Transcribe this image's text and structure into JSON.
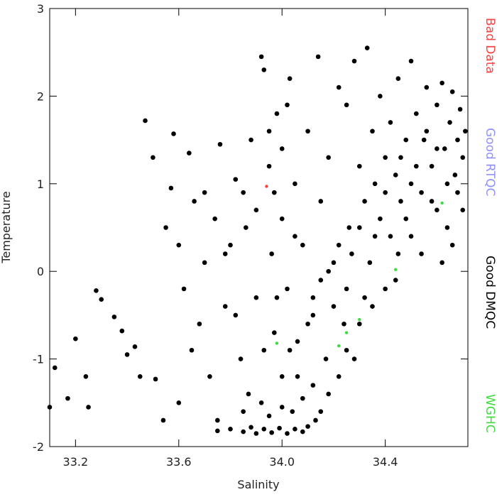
{
  "chart_data": {
    "type": "scatter",
    "x_label": "Salinity",
    "y_label": "Temperature",
    "xlim": [
      33.1,
      34.72
    ],
    "xticks": [
      {
        "value": 33.2,
        "label": "33.2"
      },
      {
        "value": 33.6,
        "label": "33.6"
      },
      {
        "value": 34.0,
        "label": "34.0"
      },
      {
        "value": 34.4,
        "label": "34.4"
      }
    ],
    "ylim": [
      -2,
      3
    ],
    "yticks": [
      -2,
      -1,
      0,
      1,
      2,
      3
    ],
    "series": [
      {
        "name": "Bad Data",
        "color": "#ff4040",
        "x": [
          33.94
        ],
        "values": [
          0.97
        ]
      },
      {
        "name": "Good RTQC",
        "color": "#8f8fff",
        "x": [],
        "values": []
      },
      {
        "name": "Good DMQC",
        "color": "#000000",
        "x": [
          33.1,
          33.12,
          33.17,
          33.2,
          33.24,
          33.25,
          33.28,
          33.3,
          33.35,
          33.38,
          33.4,
          33.43,
          33.45,
          33.47,
          33.5,
          33.51,
          33.54,
          33.58,
          33.55,
          33.57,
          33.6,
          33.62,
          33.64,
          33.66,
          33.68,
          33.7,
          33.72,
          33.74,
          33.76,
          33.78,
          33.8,
          33.82,
          33.84,
          33.86,
          33.88,
          33.9,
          33.92,
          33.93,
          33.95,
          33.96,
          33.97,
          33.98,
          34.0,
          34.02,
          34.03,
          34.05,
          34.06,
          34.08,
          34.1,
          34.12,
          34.14,
          34.15,
          34.17,
          34.18,
          34.2,
          34.22,
          34.24,
          34.25,
          34.26,
          34.28,
          34.3,
          34.32,
          34.33,
          34.35,
          34.36,
          34.38,
          34.4,
          34.42,
          34.44,
          34.45,
          34.46,
          34.48,
          34.5,
          34.5,
          34.52,
          34.54,
          34.55,
          34.56,
          34.58,
          34.6,
          34.6,
          34.62,
          34.63,
          34.64,
          34.65,
          34.66,
          34.67,
          34.68,
          34.69,
          34.7,
          34.71,
          34.66,
          34.62,
          33.75,
          33.8,
          33.85,
          33.88,
          33.9,
          33.93,
          33.96,
          33.99,
          34.02,
          34.05,
          34.08,
          34.1,
          34.13,
          34.15,
          33.85,
          33.92,
          33.95,
          34.0,
          34.04,
          34.08,
          34.12,
          34.0,
          34.03,
          34.06,
          34.1,
          34.12,
          34.15,
          34.18,
          34.2,
          34.22,
          34.25,
          34.27,
          34.3,
          34.32,
          34.34,
          34.36,
          34.38,
          34.4,
          34.42,
          34.44,
          34.46,
          34.48,
          34.5,
          34.52,
          34.54,
          34.56,
          34.58,
          34.6,
          34.64,
          34.68,
          34.7,
          34.25,
          34.3,
          34.35,
          34.22,
          34.18,
          34.28,
          34.4,
          34.45,
          33.6,
          33.65,
          33.7,
          33.75,
          33.78,
          33.82,
          33.85,
          33.87,
          33.9,
          33.93,
          33.95,
          33.97,
          34.0,
          34.02,
          34.05,
          33.98
        ],
        "values": [
          -1.55,
          -1.1,
          -1.45,
          -0.77,
          -1.2,
          -1.55,
          -0.22,
          -0.32,
          -0.52,
          -0.68,
          -0.95,
          -0.86,
          -1.2,
          1.72,
          1.3,
          -1.23,
          -1.7,
          1.57,
          0.5,
          0.95,
          0.3,
          -0.2,
          1.35,
          0.8,
          -0.6,
          0.1,
          -1.2,
          0.6,
          1.45,
          -0.4,
          0.3,
          1.05,
          -1.0,
          0.5,
          1.5,
          -0.3,
          2.45,
          2.3,
          1.2,
          0.2,
          -0.7,
          1.8,
          0.6,
          -0.2,
          2.2,
          1.0,
          -1.2,
          0.3,
          1.6,
          -0.5,
          2.45,
          0.8,
          -1.0,
          1.3,
          0.1,
          2.1,
          -0.6,
          1.9,
          0.5,
          2.4,
          1.2,
          -0.3,
          2.55,
          1.6,
          0.4,
          2.0,
          0.9,
          1.7,
          -0.1,
          2.2,
          1.3,
          0.6,
          2.4,
          1.0,
          1.8,
          0.2,
          1.5,
          2.1,
          1.2,
          0.7,
          1.9,
          2.15,
          1.4,
          0.5,
          1.7,
          2.05,
          1.1,
          1.5,
          1.85,
          1.3,
          1.6,
          0.3,
          0.1,
          -1.82,
          -1.8,
          -1.83,
          -1.78,
          -1.85,
          -1.8,
          -1.84,
          -1.79,
          -1.85,
          -1.8,
          -1.83,
          -1.77,
          -1.7,
          -1.6,
          -1.6,
          -1.5,
          -1.65,
          -1.55,
          -1.6,
          -1.45,
          -1.3,
          -1.2,
          -0.9,
          -0.8,
          -0.6,
          -0.3,
          -0.1,
          0.0,
          -0.4,
          0.3,
          -0.2,
          0.2,
          0.5,
          0.8,
          0.1,
          1.0,
          0.6,
          1.3,
          0.4,
          1.1,
          0.8,
          1.5,
          0.4,
          1.2,
          0.9,
          1.6,
          0.8,
          1.4,
          1.0,
          0.9,
          0.7,
          -0.9,
          -0.6,
          -0.4,
          -1.2,
          -1.4,
          -1.0,
          -0.2,
          0.2,
          -1.5,
          -0.9,
          0.9,
          -1.7,
          0.2,
          -0.5,
          0.9,
          -1.4,
          0.7,
          -0.9,
          1.6,
          0.9,
          1.4,
          1.9,
          0.4,
          -0.3
        ]
      },
      {
        "name": "WGHC",
        "color": "#3ddc3d",
        "x": [
          34.62,
          34.3,
          34.22,
          34.44,
          33.98,
          34.25
        ],
        "values": [
          0.78,
          -0.55,
          -0.85,
          0.02,
          -0.82,
          -0.7
        ]
      }
    ]
  }
}
